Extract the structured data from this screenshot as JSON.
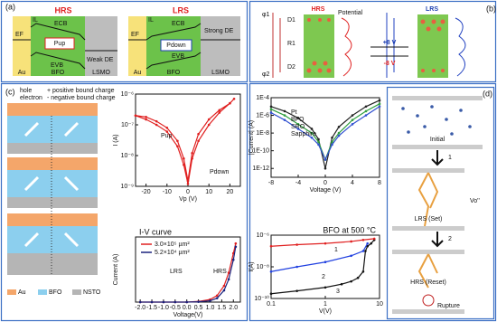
{
  "panel_a": {
    "label": "(a)",
    "hrs": {
      "title": "HRS",
      "ef": "EF",
      "il": "IL",
      "ecb": "ECB",
      "pol": "Pup",
      "evb": "EVB",
      "de": "Weak DE",
      "au": "Au",
      "bfo": "BFO",
      "lsmo": "LSMO"
    },
    "lrs": {
      "title": "LRS",
      "ef": "EF",
      "il": "IL",
      "ecb": "ECB",
      "pol": "Pdown",
      "evb": "EVB",
      "de": "Strong DE",
      "au": "Au",
      "bfo": "BFO",
      "lsmo": "LSMO"
    }
  },
  "panel_b": {
    "label": "(b)",
    "hrs": "HRS",
    "lrs": "LRS",
    "potential": "Potential",
    "plus": "+8 V",
    "minus": "-8 V",
    "phi1": "φ1",
    "phi2": "φ2",
    "d1": "D1",
    "d2": "D2",
    "r1": "R1"
  },
  "panel_c": {
    "label": "(c)",
    "hole": "hole",
    "electron": "electron",
    "pos": "+ positive bound charge",
    "neg": "- negative bound charge",
    "au": "Au",
    "bfo": "BFO",
    "nsto": "NSTO"
  },
  "panel_d": {
    "label": "(d)",
    "initial": "Initial",
    "step1": "1",
    "set": "LRS (Set)",
    "vo": "Vo''",
    "step2": "2",
    "reset": "HRS (Reset)",
    "rupture": "Rupture"
  },
  "chart_data": [
    {
      "type": "line",
      "xlabel": "Vp (V)",
      "ylabel": "I (A)",
      "log_y": true,
      "xlim": [
        -25,
        25
      ],
      "xticks": [
        -20,
        -10,
        0,
        10,
        20
      ],
      "ylim": [
        1e-09,
        1e-06
      ],
      "yticks": [
        {
          "value": 1e-09,
          "label": "10⁻⁹"
        },
        {
          "value": 1e-08,
          "label": "10⁻⁸"
        },
        {
          "value": 1e-07,
          "label": "10⁻⁷"
        },
        {
          "value": 1e-06,
          "label": "10⁻⁶"
        }
      ],
      "annotations": [
        "Pup",
        "Pdown"
      ],
      "x": [
        -25,
        -20,
        -15,
        -10,
        -5,
        -2,
        0,
        2,
        5,
        10,
        15,
        20,
        22,
        20,
        15,
        10,
        5,
        2,
        0,
        -2,
        -5,
        -10,
        -15,
        -20,
        -25
      ],
      "series": [
        {
          "color": "#e02020",
          "values": [
            2e-07,
            1.5e-07,
            1e-07,
            6e-08,
            2e-08,
            5e-09,
            1.2e-09,
            8e-09,
            3e-08,
            1e-07,
            2.5e-07,
            5e-07,
            7e-07,
            5e-07,
            3e-07,
            1.5e-07,
            5e-08,
            1.2e-08,
            1.5e-09,
            8e-09,
            3e-08,
            8e-08,
            1.3e-07,
            1.8e-07,
            2e-07
          ]
        }
      ]
    },
    {
      "type": "line",
      "title": "I-V curve",
      "xlabel": "Voltage(V)",
      "ylabel": "Current (A)",
      "xlim": [
        -2.2,
        2.3
      ],
      "xticks": [
        {
          "value": -2,
          "label": "-2.0"
        },
        {
          "value": -1.5,
          "label": "-1.5"
        },
        {
          "value": -1,
          "label": "-1.0"
        },
        {
          "value": -0.5,
          "label": "-0.5"
        },
        {
          "value": 0,
          "label": "0.0"
        },
        {
          "value": 0.5,
          "label": "0.5"
        },
        {
          "value": 1,
          "label": "1.0"
        },
        {
          "value": 1.5,
          "label": "1.5"
        },
        {
          "value": 2,
          "label": "2.0"
        }
      ],
      "ylim": [
        0,
        1
      ],
      "annotations": [
        "LRS",
        "HRS"
      ],
      "x": [
        -2,
        -1.5,
        -1,
        -0.5,
        0,
        0.5,
        1,
        1.3,
        1.6,
        1.8,
        2,
        2.1
      ],
      "series": [
        {
          "name": "3.0×10⁵ µm²",
          "color": "#e02020",
          "values": [
            0,
            0,
            0,
            0,
            0,
            0.01,
            0.04,
            0.1,
            0.25,
            0.45,
            0.75,
            0.9
          ]
        },
        {
          "name": "5.2×10⁴ µm²",
          "color": "#1a237e",
          "values": [
            0,
            0,
            0,
            0,
            0,
            0.005,
            0.02,
            0.06,
            0.18,
            0.35,
            0.65,
            0.85
          ]
        }
      ]
    },
    {
      "type": "line",
      "xlabel": "Voltage (V)",
      "ylabel": "|Current| (A)",
      "log_y": true,
      "xlim": [
        -8,
        8
      ],
      "xticks": [
        -8,
        -4,
        0,
        4,
        8
      ],
      "ylim": [
        1e-13,
        0.0001
      ],
      "yticks": [
        {
          "value": 0.0001,
          "label": "1E-4"
        },
        {
          "value": 1e-06,
          "label": "1E-6"
        },
        {
          "value": 1e-08,
          "label": "1E-8"
        },
        {
          "value": 1e-10,
          "label": "1E-10"
        },
        {
          "value": 1e-12,
          "label": "1E-12"
        }
      ],
      "annotations": [
        "Pt",
        "BFO",
        "SRO",
        "Sapphire"
      ],
      "x": [
        -8,
        -6,
        -4,
        -2,
        -1,
        0,
        1,
        2,
        4,
        6,
        8
      ],
      "series": [
        {
          "color": "#222222",
          "values": [
            1e-05,
            3e-06,
            5e-07,
            3e-08,
            2e-09,
            1e-12,
            3e-09,
            5e-08,
            1e-06,
            1e-05,
            5e-05
          ]
        },
        {
          "color": "#2e9e3e",
          "values": [
            5e-06,
            1e-06,
            1e-07,
            1e-08,
            1e-09,
            1e-11,
            1e-09,
            1e-08,
            3e-07,
            3e-06,
            2e-05
          ]
        },
        {
          "color": "#3050d0",
          "values": [
            2e-06,
            3e-07,
            3e-08,
            3e-09,
            5e-10,
            1e-11,
            5e-10,
            5e-09,
            1e-07,
            1e-06,
            1e-05
          ]
        }
      ]
    },
    {
      "type": "line",
      "title": "BFO at 500 °C",
      "xlabel": "V(V)",
      "ylabel": "I(A)",
      "log_x": true,
      "log_y": true,
      "xlim": [
        0.1,
        10
      ],
      "xticks": [
        0.1,
        1,
        10
      ],
      "ylim": [
        1e-10,
        1e-06
      ],
      "yticks": [
        {
          "value": 1e-10,
          "label": "10⁻¹⁰"
        },
        {
          "value": 1e-08,
          "label": "10⁻⁸"
        },
        {
          "value": 1e-06,
          "label": "10⁻⁶"
        }
      ],
      "annotations": [
        "1",
        "2",
        "3"
      ],
      "series": [
        {
          "color": "#111111",
          "x": [
            0.1,
            0.3,
            1,
            2,
            3,
            4,
            5,
            5.5,
            6,
            7,
            8
          ],
          "values": [
            2e-10,
            3e-10,
            5e-10,
            8e-10,
            1.2e-09,
            2e-09,
            5e-09,
            1e-07,
            2e-07,
            3e-07,
            5e-07
          ]
        },
        {
          "color": "#e02020",
          "x": [
            0.1,
            0.3,
            1,
            3,
            5,
            8
          ],
          "values": [
            2e-07,
            2.5e-07,
            3e-07,
            4e-07,
            5e-07,
            6e-07
          ]
        },
        {
          "color": "#2040e0",
          "x": [
            0.1,
            0.3,
            1,
            3,
            5,
            6
          ],
          "values": [
            5e-09,
            1e-08,
            2e-08,
            5e-08,
            1e-07,
            3e-07
          ]
        }
      ]
    }
  ]
}
